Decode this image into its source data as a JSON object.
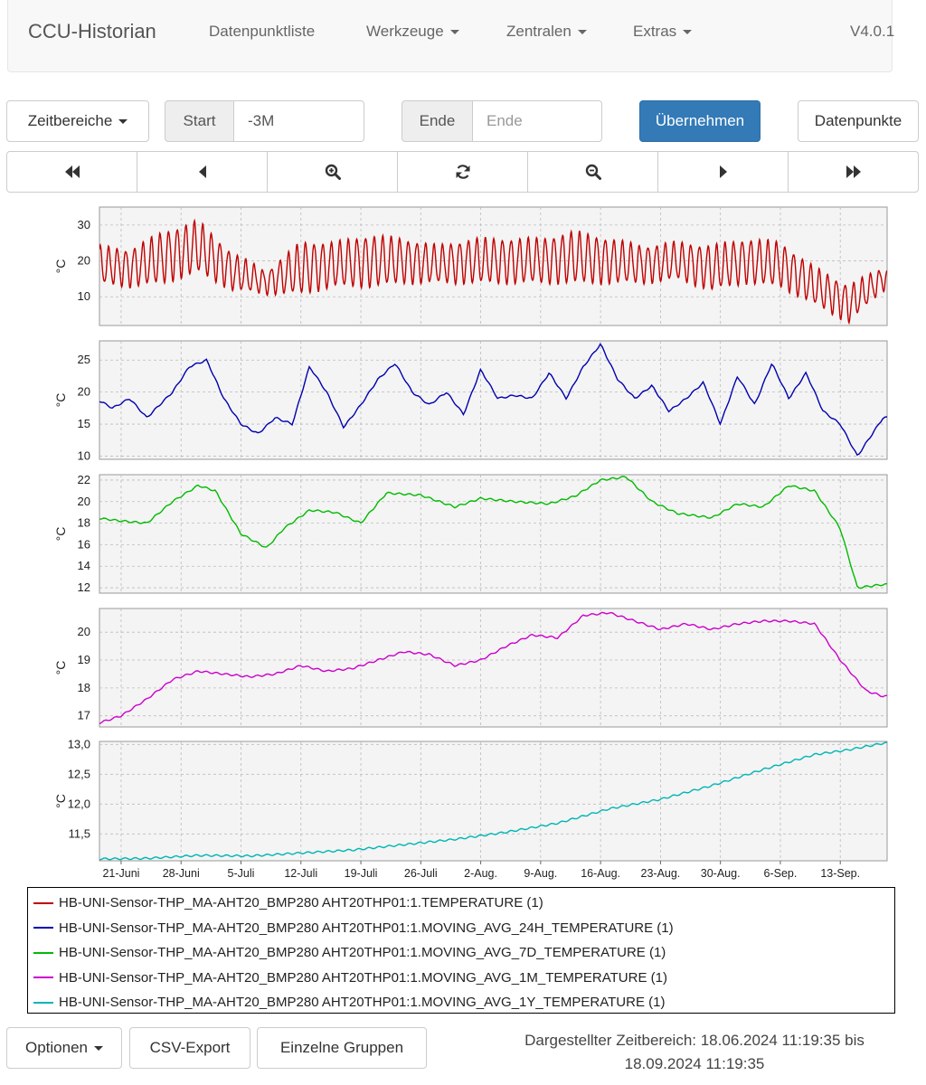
{
  "navbar": {
    "brand": "CCU-Historian",
    "items": [
      {
        "label": "Datenpunktliste",
        "dropdown": false
      },
      {
        "label": "Werkzeuge",
        "dropdown": true
      },
      {
        "label": "Zentralen",
        "dropdown": true
      },
      {
        "label": "Extras",
        "dropdown": true
      }
    ],
    "version": "V4.0.1"
  },
  "toolbar": {
    "zeitbereiche_label": "Zeitbereiche",
    "start_label": "Start",
    "start_value": "-3M",
    "ende_label": "Ende",
    "ende_placeholder": "Ende",
    "apply_label": "Übernehmen",
    "datapoints_label": "Datenpunkte"
  },
  "time_nav": [
    {
      "icon": "fast-backward-icon"
    },
    {
      "icon": "step-backward-icon"
    },
    {
      "icon": "zoom-in-icon"
    },
    {
      "icon": "refresh-icon"
    },
    {
      "icon": "zoom-out-icon"
    },
    {
      "icon": "step-forward-icon"
    },
    {
      "icon": "fast-forward-icon"
    }
  ],
  "chart_data": {
    "type": "line",
    "x_range": [
      "2024-06-18",
      "2024-09-18"
    ],
    "x_ticks": [
      "21-Juni",
      "28-Juni",
      "5-Juli",
      "12-Juli",
      "19-Juli",
      "26-Juli",
      "2-Aug.",
      "9-Aug.",
      "16-Aug.",
      "23-Aug.",
      "30-Aug.",
      "6-Sep.",
      "13-Sep."
    ],
    "x_tick_dates": [
      "2024-06-21",
      "2024-06-28",
      "2024-07-05",
      "2024-07-12",
      "2024-07-19",
      "2024-07-26",
      "2024-08-02",
      "2024-08-09",
      "2024-08-16",
      "2024-08-23",
      "2024-08-30",
      "2024-09-06",
      "2024-09-13"
    ],
    "grid": true,
    "panels": [
      {
        "ylabel": "°C",
        "ylim": [
          2,
          35
        ],
        "yticks": [
          "10",
          "20",
          "30"
        ],
        "ytick_values": [
          10,
          20,
          30
        ],
        "color": "#c00000",
        "series_label": "HB-UNI-Sensor-THP_MA-AHT20_BMP280 AHT20THP01:1.TEMPERATURE (1)",
        "kind": "daily",
        "x": [
          "2024-06-18",
          "2024-06-22",
          "2024-06-26",
          "2024-06-30",
          "2024-07-04",
          "2024-07-08",
          "2024-07-12",
          "2024-07-16",
          "2024-07-20",
          "2024-07-24",
          "2024-07-28",
          "2024-08-01",
          "2024-08-05",
          "2024-08-09",
          "2024-08-13",
          "2024-08-17",
          "2024-08-21",
          "2024-08-25",
          "2024-08-29",
          "2024-09-02",
          "2024-09-06",
          "2024-09-10",
          "2024-09-14",
          "2024-09-18"
        ],
        "mean": [
          19,
          18,
          21,
          24,
          17,
          14,
          18,
          19,
          20,
          20,
          19,
          20,
          20,
          20,
          21,
          20,
          19,
          20,
          18,
          20,
          19,
          13,
          8,
          15
        ],
        "amplitude": [
          5,
          5,
          7,
          7,
          5,
          3,
          7,
          6,
          7,
          6,
          5,
          6,
          6,
          6,
          7,
          6,
          5,
          5,
          6,
          6,
          6,
          5,
          5,
          3
        ]
      },
      {
        "ylabel": "°C",
        "ylim": [
          9.5,
          28
        ],
        "yticks": [
          "10",
          "15",
          "20",
          "25"
        ],
        "ytick_values": [
          10,
          15,
          20,
          25
        ],
        "color": "#0000b0",
        "series_label": "HB-UNI-Sensor-THP_MA-AHT20_BMP280 AHT20THP01:1.MOVING_AVG_24H_TEMPERATURE (1)",
        "x": [
          "2024-06-18",
          "2024-06-20",
          "2024-06-22",
          "2024-06-24",
          "2024-06-27",
          "2024-06-29",
          "2024-07-01",
          "2024-07-03",
          "2024-07-05",
          "2024-07-07",
          "2024-07-09",
          "2024-07-11",
          "2024-07-13",
          "2024-07-15",
          "2024-07-17",
          "2024-07-19",
          "2024-07-21",
          "2024-07-23",
          "2024-07-25",
          "2024-07-27",
          "2024-07-29",
          "2024-07-31",
          "2024-08-02",
          "2024-08-04",
          "2024-08-06",
          "2024-08-08",
          "2024-08-10",
          "2024-08-12",
          "2024-08-14",
          "2024-08-16",
          "2024-08-18",
          "2024-08-20",
          "2024-08-22",
          "2024-08-24",
          "2024-08-26",
          "2024-08-28",
          "2024-08-30",
          "2024-09-01",
          "2024-09-03",
          "2024-09-05",
          "2024-09-07",
          "2024-09-09",
          "2024-09-11",
          "2024-09-13",
          "2024-09-15",
          "2024-09-18"
        ],
        "values": [
          19,
          17.5,
          19,
          16,
          20,
          24,
          25,
          19,
          15,
          13.5,
          16,
          15,
          24,
          20,
          14.5,
          18,
          22,
          24.5,
          20,
          18,
          20,
          16.5,
          23.5,
          19,
          19.5,
          19,
          23,
          19,
          24,
          27.5,
          22,
          19,
          21,
          17,
          19,
          21.5,
          15,
          22.5,
          18,
          24.5,
          19,
          23,
          17,
          15,
          10,
          16
        ]
      },
      {
        "ylabel": "°C",
        "ylim": [
          11.5,
          22.5
        ],
        "yticks": [
          "12",
          "14",
          "16",
          "18",
          "20",
          "22"
        ],
        "ytick_values": [
          12,
          14,
          16,
          18,
          20,
          22
        ],
        "color": "#00bb00",
        "series_label": "HB-UNI-Sensor-THP_MA-AHT20_BMP280 AHT20THP01:1.MOVING_AVG_7D_TEMPERATURE (1)",
        "x": [
          "2024-06-18",
          "2024-06-21",
          "2024-06-24",
          "2024-06-27",
          "2024-06-30",
          "2024-07-02",
          "2024-07-05",
          "2024-07-08",
          "2024-07-10",
          "2024-07-13",
          "2024-07-16",
          "2024-07-19",
          "2024-07-22",
          "2024-07-26",
          "2024-07-30",
          "2024-08-02",
          "2024-08-06",
          "2024-08-10",
          "2024-08-13",
          "2024-08-16",
          "2024-08-19",
          "2024-08-22",
          "2024-08-25",
          "2024-08-29",
          "2024-09-01",
          "2024-09-04",
          "2024-09-07",
          "2024-09-10",
          "2024-09-13",
          "2024-09-15",
          "2024-09-18"
        ],
        "values": [
          18.5,
          18.2,
          18,
          20,
          21.5,
          21,
          17,
          15.7,
          17.5,
          19.2,
          19,
          18,
          20.8,
          20.6,
          19.5,
          20.3,
          20,
          19.8,
          20.5,
          22,
          22.3,
          20,
          18.9,
          18.5,
          19.8,
          19.5,
          21.5,
          21,
          17.5,
          12,
          12.3
        ]
      },
      {
        "ylabel": "°C",
        "ylim": [
          16.6,
          20.85
        ],
        "yticks": [
          "17",
          "18",
          "19",
          "20"
        ],
        "ytick_values": [
          17,
          18,
          19,
          20
        ],
        "color": "#cc00cc",
        "series_label": "HB-UNI-Sensor-THP_MA-AHT20_BMP280 AHT20THP01:1.MOVING_AVG_1M_TEMPERATURE (1)",
        "x": [
          "2024-06-18",
          "2024-06-21",
          "2024-06-24",
          "2024-06-27",
          "2024-06-30",
          "2024-07-03",
          "2024-07-06",
          "2024-07-09",
          "2024-07-12",
          "2024-07-15",
          "2024-07-18",
          "2024-07-21",
          "2024-07-24",
          "2024-07-27",
          "2024-07-30",
          "2024-08-02",
          "2024-08-05",
          "2024-08-08",
          "2024-08-11",
          "2024-08-14",
          "2024-08-17",
          "2024-08-20",
          "2024-08-23",
          "2024-08-26",
          "2024-08-29",
          "2024-09-01",
          "2024-09-04",
          "2024-09-07",
          "2024-09-10",
          "2024-09-13",
          "2024-09-16",
          "2024-09-18"
        ],
        "values": [
          16.7,
          17,
          17.6,
          18.3,
          18.6,
          18.5,
          18.4,
          18.5,
          18.8,
          18.6,
          18.7,
          19,
          19.3,
          19.2,
          18.8,
          19,
          19.5,
          19.9,
          19.8,
          20.6,
          20.7,
          20.4,
          20.1,
          20.3,
          20.1,
          20.3,
          20.4,
          20.4,
          20.3,
          19,
          17.9,
          17.7
        ]
      },
      {
        "ylabel": "°C",
        "ylim": [
          11.05,
          13.05
        ],
        "yticks": [
          "11,5",
          "12,0",
          "12,5",
          "13,0"
        ],
        "ytick_values": [
          11.5,
          12.0,
          12.5,
          13.0
        ],
        "color": "#00b5b5",
        "series_label": "HB-UNI-Sensor-THP_MA-AHT20_BMP280 AHT20THP01:1.MOVING_AVG_1Y_TEMPERATURE (1)",
        "x": [
          "2024-06-18",
          "2024-06-24",
          "2024-06-30",
          "2024-07-06",
          "2024-07-12",
          "2024-07-18",
          "2024-07-24",
          "2024-07-30",
          "2024-08-05",
          "2024-08-11",
          "2024-08-17",
          "2024-08-23",
          "2024-08-29",
          "2024-09-04",
          "2024-09-10",
          "2024-09-14",
          "2024-09-18"
        ],
        "values": [
          11.08,
          11.09,
          11.14,
          11.13,
          11.18,
          11.23,
          11.32,
          11.41,
          11.53,
          11.68,
          11.92,
          12.08,
          12.31,
          12.58,
          12.83,
          12.91,
          13.02
        ]
      }
    ]
  },
  "legend": [
    {
      "label": "HB-UNI-Sensor-THP_MA-AHT20_BMP280 AHT20THP01:1.TEMPERATURE (1)",
      "color": "#c00000"
    },
    {
      "label": "HB-UNI-Sensor-THP_MA-AHT20_BMP280 AHT20THP01:1.MOVING_AVG_24H_TEMPERATURE (1)",
      "color": "#0000b0"
    },
    {
      "label": "HB-UNI-Sensor-THP_MA-AHT20_BMP280 AHT20THP01:1.MOVING_AVG_7D_TEMPERATURE (1)",
      "color": "#00bb00"
    },
    {
      "label": "HB-UNI-Sensor-THP_MA-AHT20_BMP280 AHT20THP01:1.MOVING_AVG_1M_TEMPERATURE (1)",
      "color": "#cc00cc"
    },
    {
      "label": "HB-UNI-Sensor-THP_MA-AHT20_BMP280 AHT20THP01:1.MOVING_AVG_1Y_TEMPERATURE (1)",
      "color": "#00b5b5"
    }
  ],
  "footer": {
    "options_label": "Optionen",
    "csv_label": "CSV-Export",
    "groups_label": "Einzelne Gruppen",
    "status_line1": "Dargestellter Zeitbereich: 18.06.2024 11:19:35 bis",
    "status_line2": "18.09.2024 11:19:35"
  }
}
